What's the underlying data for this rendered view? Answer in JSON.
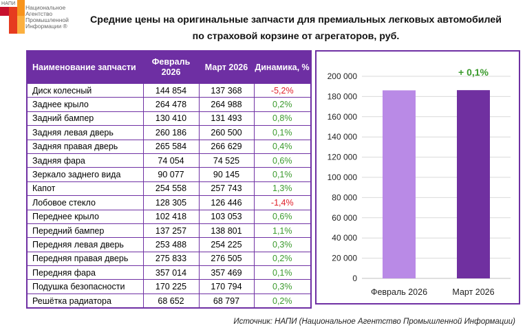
{
  "logo": {
    "abbr": "НАПИ",
    "lines": [
      "Национальное",
      "Агентство",
      "Промышленной",
      "Информации ®"
    ]
  },
  "title": {
    "line1": "Средние цены на оригинальные запчасти для премиальных легковых автомобилей",
    "line2": "по страховой корзине от агрегаторов, руб."
  },
  "table": {
    "headers": [
      "Наименование запчасти",
      "Февраль 2026",
      "Март 2026",
      "Динамика, %"
    ],
    "rows": [
      {
        "name": "Диск колесный",
        "feb": "144 854",
        "mar": "137 368",
        "dyn": "-5,2%"
      },
      {
        "name": "Заднее крыло",
        "feb": "264 478",
        "mar": "264 988",
        "dyn": "0,2%"
      },
      {
        "name": "Задний бампер",
        "feb": "130 410",
        "mar": "131 493",
        "dyn": "0,8%"
      },
      {
        "name": "Задняя левая дверь",
        "feb": "260 186",
        "mar": "260 500",
        "dyn": "0,1%"
      },
      {
        "name": "Задняя правая дверь",
        "feb": "265 584",
        "mar": "266 629",
        "dyn": "0,4%"
      },
      {
        "name": "Задняя фара",
        "feb": "74 054",
        "mar": "74 525",
        "dyn": "0,6%"
      },
      {
        "name": "Зеркало заднего вида",
        "feb": "90 077",
        "mar": "90 145",
        "dyn": "0,1%"
      },
      {
        "name": "Капот",
        "feb": "254 558",
        "mar": "257 743",
        "dyn": "1,3%"
      },
      {
        "name": "Лобовое стекло",
        "feb": "128 305",
        "mar": "126 446",
        "dyn": "-1,4%"
      },
      {
        "name": "Переднее крыло",
        "feb": "102 418",
        "mar": "103 053",
        "dyn": "0,6%"
      },
      {
        "name": "Передний бампер",
        "feb": "137 257",
        "mar": "138 801",
        "dyn": "1,1%"
      },
      {
        "name": "Передняя левая дверь",
        "feb": "253 488",
        "mar": "254 225",
        "dyn": "0,3%"
      },
      {
        "name": "Передняя правая дверь",
        "feb": "275 833",
        "mar": "276 505",
        "dyn": "0,2%"
      },
      {
        "name": "Передняя фара",
        "feb": "357 014",
        "mar": "357 469",
        "dyn": "0,1%"
      },
      {
        "name": "Подушка безопасности",
        "feb": "170 225",
        "mar": "170 794",
        "dyn": "0,3%"
      },
      {
        "name": "Решётка радиатора",
        "feb": "68 652",
        "mar": "68 797",
        "dyn": "0,2%"
      }
    ]
  },
  "chart_data": {
    "type": "bar",
    "categories": [
      "Февраль 2026",
      "Март 2026"
    ],
    "values": [
      186100,
      186300
    ],
    "ylim": [
      0,
      200000
    ],
    "yticks": [
      0,
      20000,
      40000,
      60000,
      80000,
      100000,
      120000,
      140000,
      160000,
      180000,
      200000
    ],
    "ytick_labels": [
      "0",
      "20 000",
      "40 000",
      "60 000",
      "80 000",
      "100 000",
      "120 000",
      "140 000",
      "160 000",
      "180 000",
      "200 000"
    ],
    "annotation": "+ 0,1%",
    "grid": true,
    "bar_colors": [
      "#b98ae6",
      "#7030a0"
    ],
    "annotation_color": "#3a9a2c"
  },
  "source": "Источник: НАПИ (Национальное Агентство Промышленной Информации)",
  "colors": {
    "accent": "#6e2fa3",
    "positive": "#3a9a2c",
    "negative": "#e0202a",
    "logo_red": "#e63b1f",
    "logo_orange": "#f7941d"
  }
}
